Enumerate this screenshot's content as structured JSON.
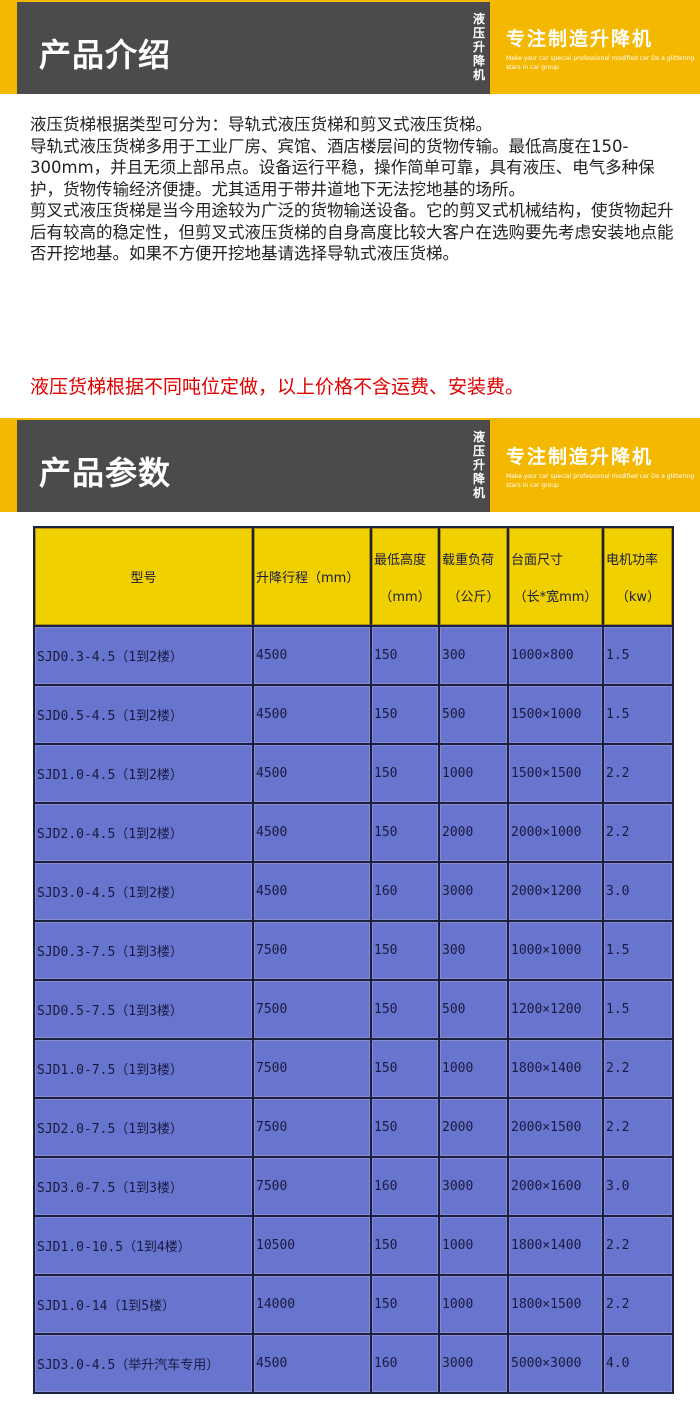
{
  "banner1": {
    "title": "产品介绍",
    "vertical": "液压升降机",
    "slogan": "专注制造升降机",
    "english": "Make your car special professional modified car Do a glittering stars in car group"
  },
  "banner2": {
    "title": "产品参数",
    "vertical": "液压升降机",
    "slogan": "专注制造升降机",
    "english": "Make your car special professional modified car Do a glittering stars in car group"
  },
  "intro": [
    "液压货梯根据类型可分为：导轨式液压货梯和剪叉式液压货梯。",
    "导轨式液压货梯多用于工业厂房、宾馆、酒店楼层间的货物传输。最低高度在150-300mm，并且无须上部吊点。设备运行平稳，操作简单可靠，具有液压、电气多种保护，货物传输经济便捷。尤其适用于带井道地下无法挖地基的场所。",
    "剪叉式液压货梯是当今用途较为广泛的货物输送设备。它的剪叉式机械结构，使货物起升后有较高的稳定性，但剪叉式液压货梯的自身高度比较大客户在选购要先考虑安装地点能否开挖地基。如果不方便开挖地基请选择导轨式液压货梯。"
  ],
  "notice": "液压货梯根据不同吨位定做，以上价格不含运费、安装费。",
  "table": {
    "headers": [
      [
        "型号",
        ""
      ],
      [
        "升降行程（mm）",
        ""
      ],
      [
        "最低高度",
        "（mm）"
      ],
      [
        "载重负荷",
        "（公斤）"
      ],
      [
        "台面尺寸",
        "（长*宽mm）"
      ],
      [
        "电机功率",
        "（kw）"
      ]
    ],
    "rows": [
      [
        "SJD0.3-4.5（1到2楼）",
        "4500",
        "150",
        "300",
        "1000×800",
        "1.5"
      ],
      [
        "SJD0.5-4.5（1到2楼）",
        "4500",
        "150",
        "500",
        "1500×1000",
        "1.5"
      ],
      [
        "SJD1.0-4.5（1到2楼）",
        "4500",
        "150",
        "1000",
        "1500×1500",
        "2.2"
      ],
      [
        "SJD2.0-4.5（1到2楼）",
        "4500",
        "150",
        "2000",
        "2000×1000",
        "2.2"
      ],
      [
        "SJD3.0-4.5（1到2楼）",
        "4500",
        "160",
        "3000",
        "2000×1200",
        "3.0"
      ],
      [
        "SJD0.3-7.5（1到3楼）",
        "7500",
        "150",
        "300",
        "1000×1000",
        "1.5"
      ],
      [
        "SJD0.5-7.5（1到3楼）",
        "7500",
        "150",
        "500",
        "1200×1200",
        "1.5"
      ],
      [
        "SJD1.0-7.5（1到3楼）",
        "7500",
        "150",
        "1000",
        "1800×1400",
        "2.2"
      ],
      [
        "SJD2.0-7.5（1到3楼）",
        "7500",
        "150",
        "2000",
        "2000×1500",
        "2.2"
      ],
      [
        "SJD3.0-7.5（1到3楼）",
        "7500",
        "160",
        "3000",
        "2000×1600",
        "3.0"
      ],
      [
        "SJD1.0-10.5（1到4楼）",
        "10500",
        "150",
        "1000",
        "1800×1400",
        "2.2"
      ],
      [
        "SJD1.0-14（1到5楼）",
        "14000",
        "150",
        "1000",
        "1800×1500",
        "2.2"
      ],
      [
        "SJD3.0-4.5（举升汽车专用）",
        "4500",
        "160",
        "3000",
        "5000×3000",
        "4.0"
      ]
    ]
  }
}
